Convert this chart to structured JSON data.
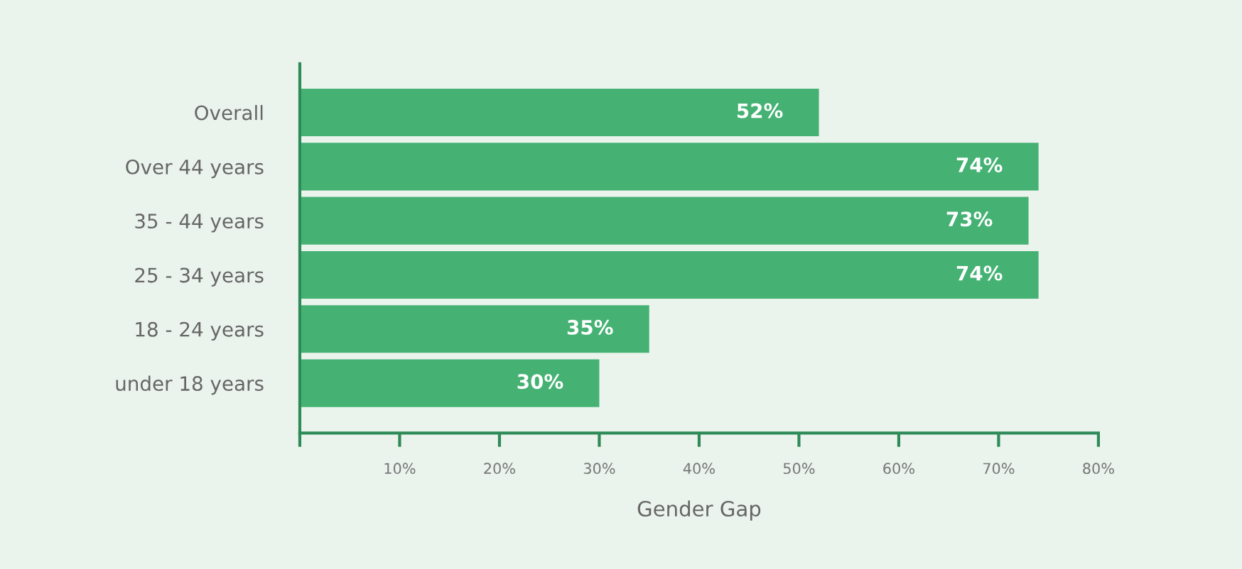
{
  "chart_data": {
    "type": "bar",
    "orientation": "horizontal",
    "xlabel": "Gender Gap",
    "categories": [
      "Overall",
      "Over 44 years",
      "35 - 44 years",
      "25 - 34 years",
      "18 - 24 years",
      "under 18 years"
    ],
    "values": [
      52,
      74,
      73,
      74,
      35,
      30
    ],
    "color": "#45b274",
    "value_labels": [
      "52%",
      "74%",
      "73%",
      "74%",
      "35%",
      "30%"
    ],
    "xlim": [
      0,
      80
    ],
    "xticks": [
      {
        "value": 0,
        "label": null
      },
      {
        "value": 10,
        "label": "10%"
      },
      {
        "value": 20,
        "label": "20%"
      },
      {
        "value": 30,
        "label": "30%"
      },
      {
        "value": 40,
        "label": "40%"
      },
      {
        "value": 50,
        "label": "50%"
      },
      {
        "value": 60,
        "label": "60%"
      },
      {
        "value": 70,
        "label": "70%"
      },
      {
        "value": 80,
        "label": "80%"
      }
    ],
    "grid": false,
    "legend": false
  }
}
